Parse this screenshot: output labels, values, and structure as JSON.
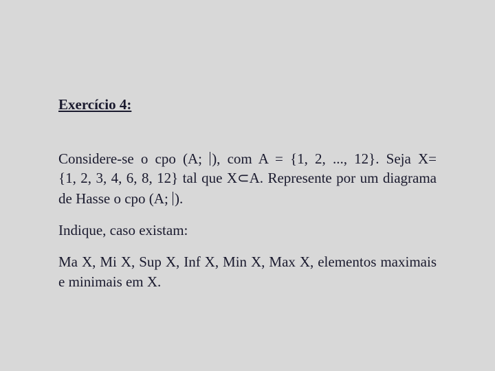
{
  "heading": "Exercício 4:",
  "p1_part1": "Considere-se o cpo (A; ",
  "p1_part2": "), com A = {1, 2, ..., 12}. Seja X={1, 2, 3, 4, 6, 8, 12} tal que X",
  "p1_subset": "⊂",
  "p1_part3": "A. Represente por um diagrama de Hasse o cpo (A; ",
  "p1_part4": ").",
  "p2": "Indique, caso existam:",
  "p3": "Ma X, Mi X, Sup X, Inf X, Min X, Max X, elementos maximais e minimais em X."
}
